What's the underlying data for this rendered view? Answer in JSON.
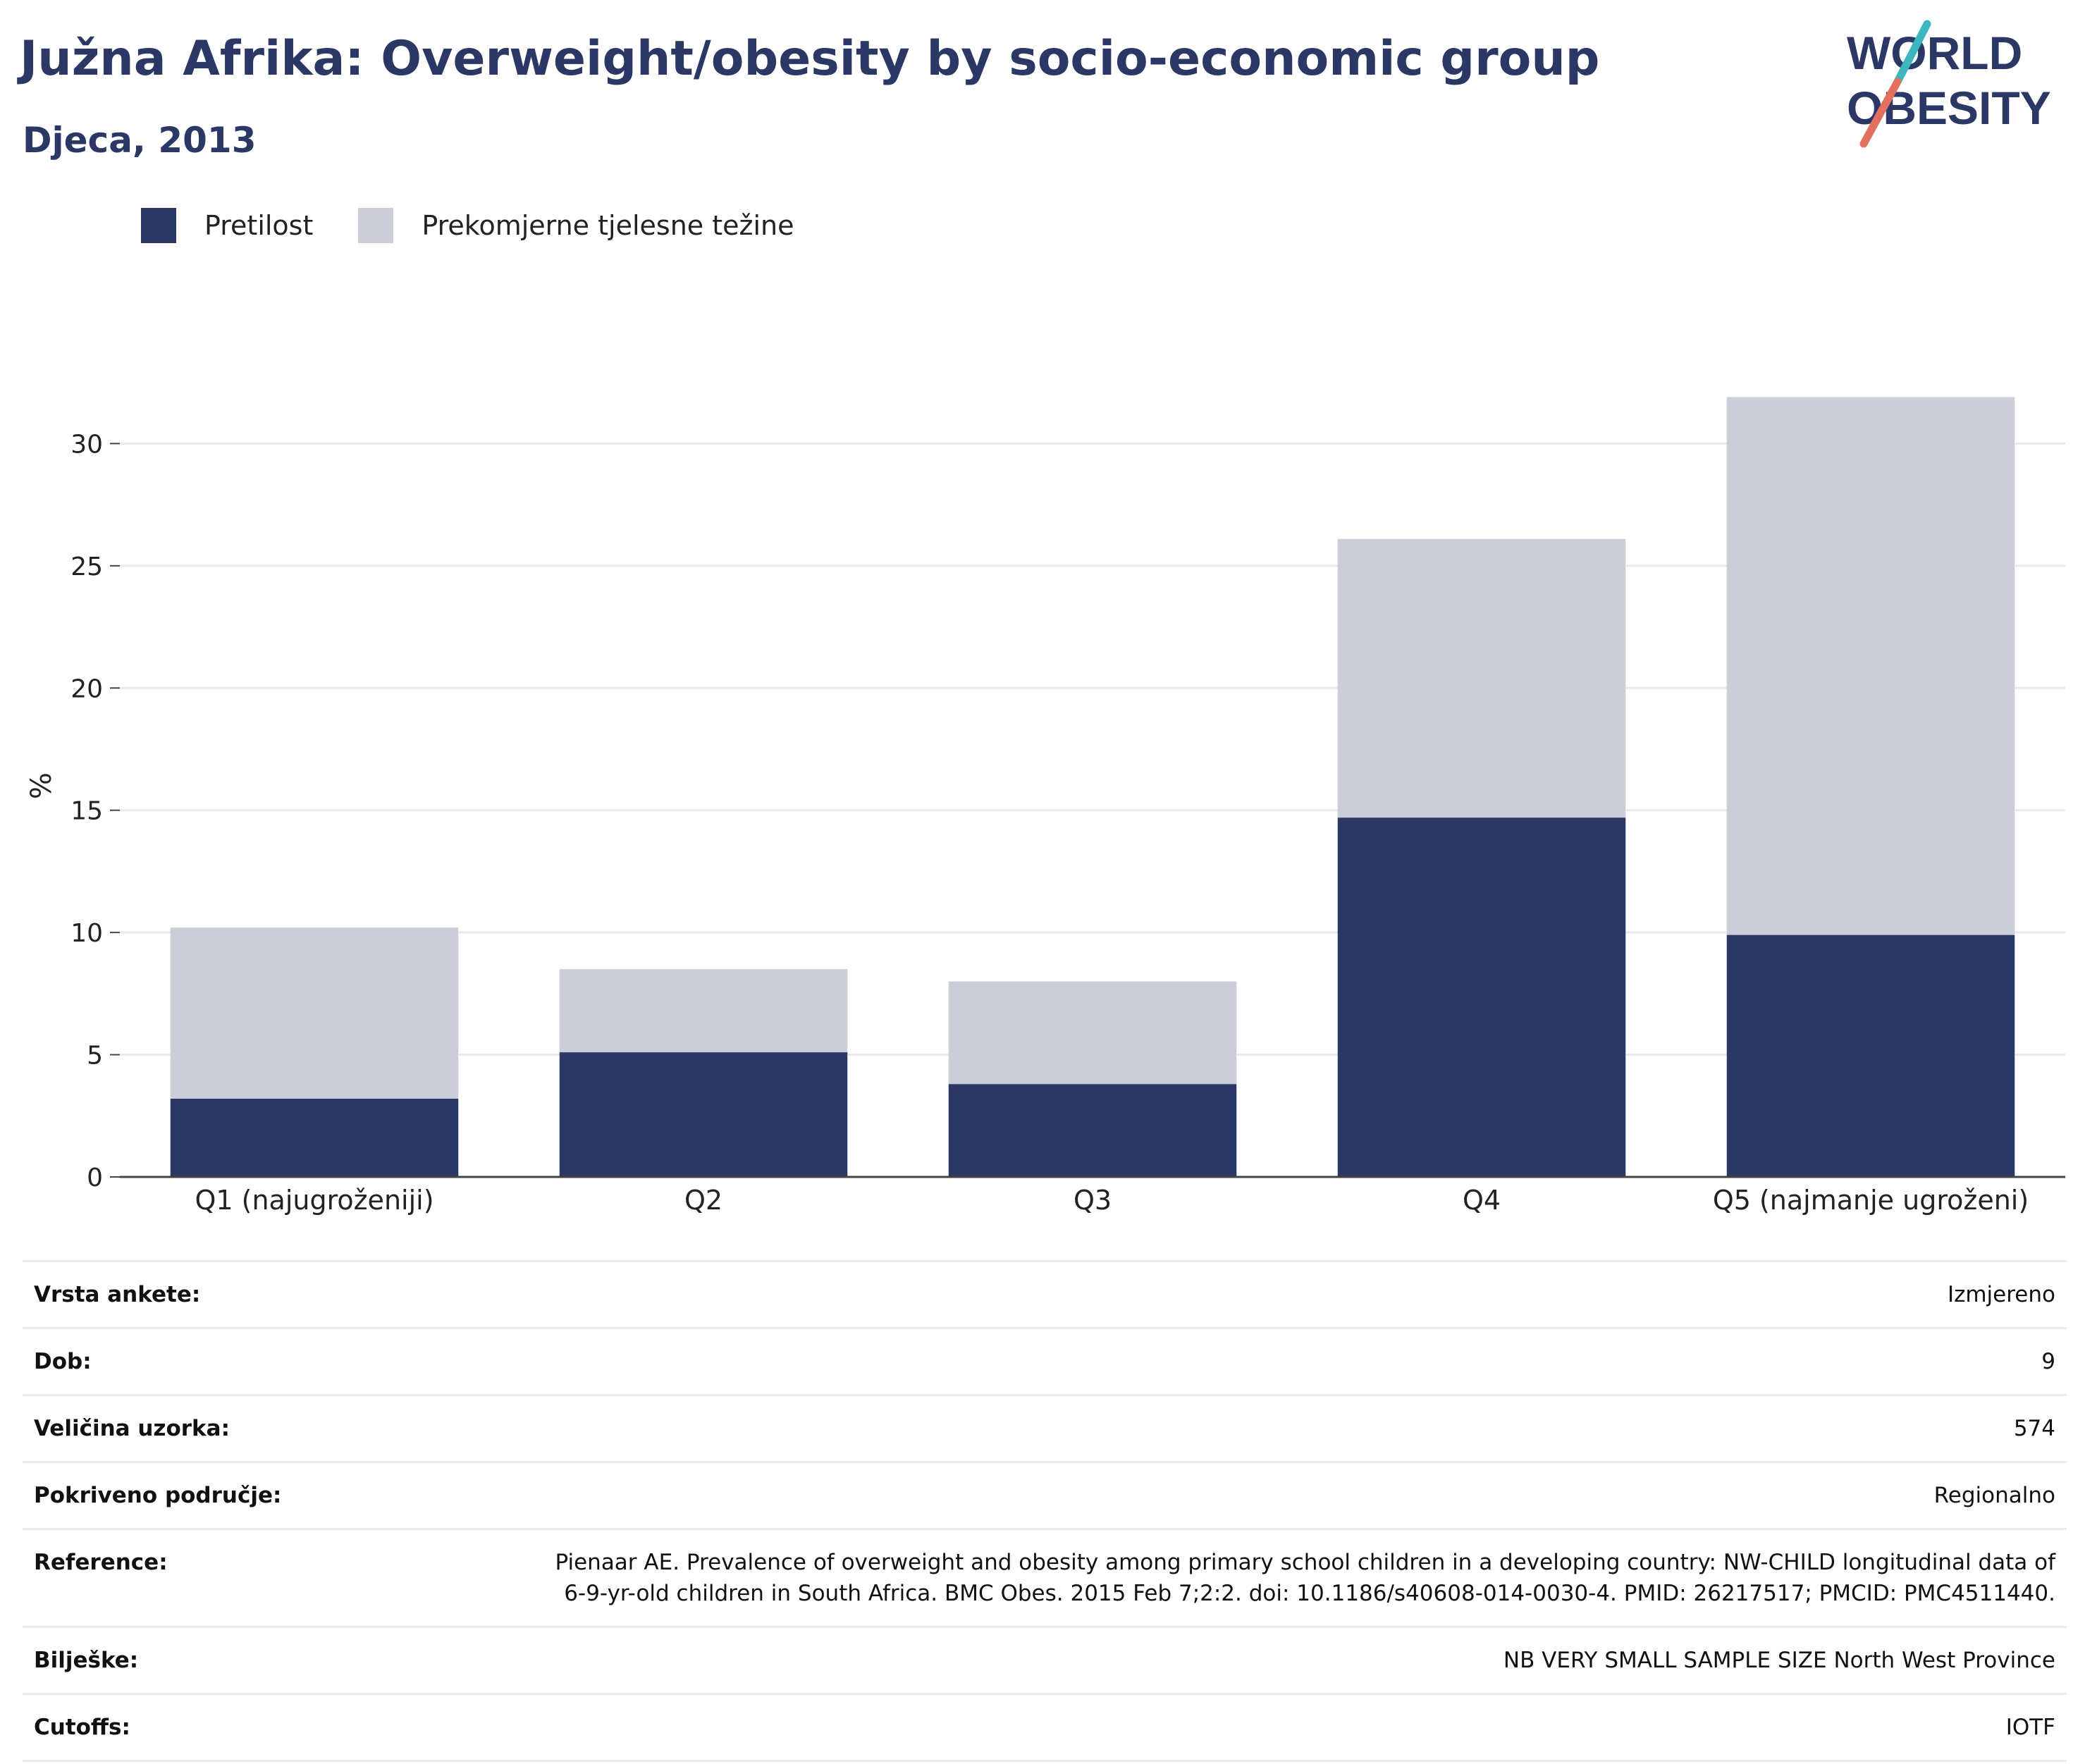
{
  "title": "Južna Afrika: Overweight/obesity by socio-economic group",
  "subtitle": "Djeca, 2013",
  "logo": {
    "line1": "WORLD",
    "line2": "OBESITY"
  },
  "legend": [
    {
      "label": "Pretilost",
      "color": "#2b3765"
    },
    {
      "label": "Prekomjerne tjelesne težine",
      "color": "#cbcdd8"
    }
  ],
  "chart_data": {
    "type": "bar",
    "stacked": true,
    "categories": [
      "Q1 (najugroženiji)",
      "Q2",
      "Q3",
      "Q4",
      "Q5 (najmanje ugroženi)"
    ],
    "series": [
      {
        "name": "Pretilost",
        "color": "#2b3765",
        "values": [
          3.2,
          5.1,
          3.8,
          14.7,
          9.9
        ]
      },
      {
        "name": "Prekomjerne tjelesne težine",
        "color": "#cbcdd8",
        "values": [
          7.0,
          3.4,
          4.2,
          11.4,
          22.0
        ]
      }
    ],
    "ylabel": "%",
    "xlabel": "",
    "ylim": [
      0,
      32
    ],
    "yticks": [
      0,
      5,
      10,
      15,
      20,
      25,
      30
    ],
    "grid": true
  },
  "info": [
    {
      "label": "Vrsta ankete:",
      "value": "Izmjereno"
    },
    {
      "label": "Dob:",
      "value": "9"
    },
    {
      "label": "Veličina uzorka:",
      "value": "574"
    },
    {
      "label": "Pokriveno područje:",
      "value": "Regionalno"
    },
    {
      "label": "Reference:",
      "value": "Pienaar AE. Prevalence of overweight and obesity among primary school children in a developing country: NW-CHILD longitudinal data of 6-9-yr-old children in South Africa. BMC Obes. 2015 Feb 7;2:2. doi: 10.1186/s40608-014-0030-4. PMID: 26217517; PMCID: PMC4511440."
    },
    {
      "label": "Bilješke:",
      "value": "NB VERY SMALL SAMPLE SIZE North West Province"
    },
    {
      "label": "Cutoffs:",
      "value": "IOTF"
    }
  ]
}
